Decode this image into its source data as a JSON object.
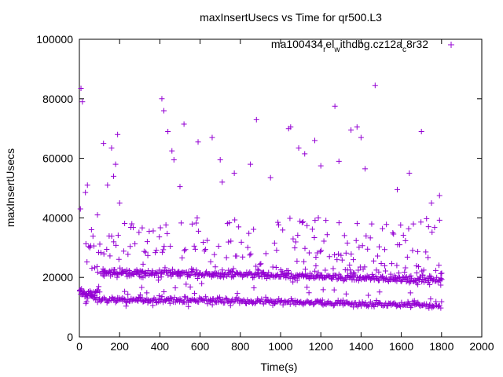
{
  "chart_data": {
    "type": "scatter",
    "title": "maxInsertUsecs vs Time for qr500.L3",
    "xlabel": "Time(s)",
    "ylabel": "maxInsertUsecs",
    "xlim": [
      0,
      2000
    ],
    "ylim": [
      0,
      100000
    ],
    "xticks": [
      "0",
      "200",
      "400",
      "600",
      "800",
      "1000",
      "1200",
      "1400",
      "1600",
      "1800",
      "2000"
    ],
    "yticks": [
      "0",
      "20000",
      "40000",
      "60000",
      "80000",
      "100000"
    ],
    "legend": {
      "position": "top-right",
      "label_main": "ma100434",
      "label_sub1": "r",
      "label_mid": "el",
      "label_sub2": "w",
      "label_tail": "ithdbg.cz12a",
      "label_sub3": "c",
      "label_end": "8r32",
      "full_label": "ma100434_rel_withdbg.cz12a_c8r32"
    },
    "marker": "+",
    "color": "#9400d3",
    "series": [
      {
        "name": "ma100434_rel_withdbg.cz12a_c8r32",
        "x_range": [
          0,
          1800
        ],
        "x_step": 5,
        "bands": [
          {
            "name": "low",
            "start": 15000,
            "mid": 12500,
            "end": 10500,
            "spread": 1500
          },
          {
            "name": "mid",
            "start": 14000,
            "mid": 21500,
            "end": 19000,
            "spread": 1500
          },
          {
            "name": "scatter",
            "min": 20000,
            "max": 40000
          }
        ],
        "outliers": [
          [
            8,
            83500
          ],
          [
            15,
            79000
          ],
          [
            5,
            43000
          ],
          [
            30,
            48500
          ],
          [
            40,
            51000
          ],
          [
            60,
            36000
          ],
          [
            90,
            41000
          ],
          [
            120,
            65000
          ],
          [
            140,
            51000
          ],
          [
            160,
            63500
          ],
          [
            170,
            54000
          ],
          [
            190,
            68000
          ],
          [
            180,
            58000
          ],
          [
            200,
            45000
          ],
          [
            410,
            80000
          ],
          [
            420,
            76000
          ],
          [
            440,
            69000
          ],
          [
            460,
            62500
          ],
          [
            470,
            59500
          ],
          [
            500,
            50500
          ],
          [
            520,
            71500
          ],
          [
            590,
            65500
          ],
          [
            660,
            67000
          ],
          [
            700,
            59500
          ],
          [
            710,
            52000
          ],
          [
            770,
            55000
          ],
          [
            850,
            58000
          ],
          [
            880,
            73000
          ],
          [
            950,
            53500
          ],
          [
            1040,
            70000
          ],
          [
            1050,
            70500
          ],
          [
            1090,
            63500
          ],
          [
            1120,
            61500
          ],
          [
            1170,
            66000
          ],
          [
            1200,
            57500
          ],
          [
            1270,
            77500
          ],
          [
            1290,
            59000
          ],
          [
            1350,
            69500
          ],
          [
            1380,
            70500
          ],
          [
            1400,
            67000
          ],
          [
            1420,
            56500
          ],
          [
            1470,
            84500
          ],
          [
            1580,
            49500
          ],
          [
            1640,
            55000
          ],
          [
            1700,
            69000
          ],
          [
            1750,
            45000
          ],
          [
            1790,
            47500
          ]
        ]
      }
    ]
  }
}
